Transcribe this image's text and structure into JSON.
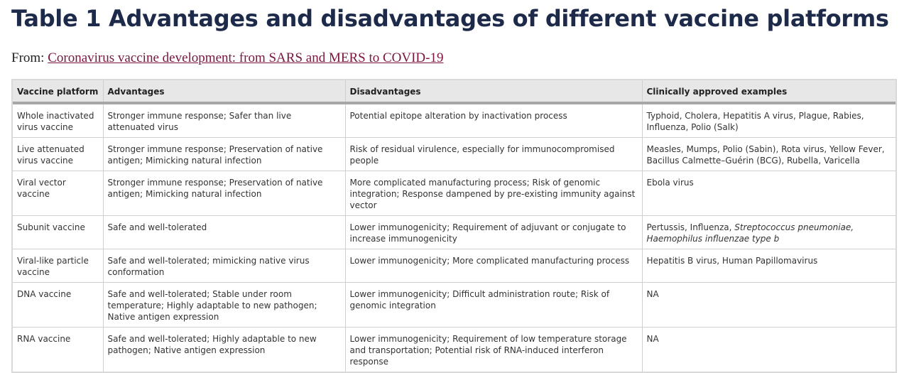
{
  "page": {
    "title": "Table 1 Advantages and disadvantages of different vaccine platforms",
    "from_label": "From:",
    "source_link": "Coronavirus vaccine development: from SARS and MERS to COVID-19"
  },
  "table": {
    "headers": [
      "Vaccine platform",
      "Advantages",
      "Disadvantages",
      "Clinically approved examples"
    ],
    "rows": [
      {
        "platform": "Whole inactivated virus vaccine",
        "advantages": "Stronger immune response; Safer than live attenuated virus",
        "disadvantages": "Potential epitope alteration by inactivation process",
        "examples": "Typhoid, Cholera, Hepatitis A virus, Plague, Rabies, Influenza, Polio (Salk)"
      },
      {
        "platform": "Live attenuated virus vaccine",
        "advantages": "Stronger immune response; Preservation of native antigen; Mimicking natural infection",
        "disadvantages": "Risk of residual virulence, especially for immunocompromised people",
        "examples": "Measles, Mumps, Polio (Sabin), Rota virus, Yellow Fever, Bacillus Calmette–Guérin (BCG), Rubella, Varicella"
      },
      {
        "platform": "Viral vector vaccine",
        "advantages": "Stronger immune response; Preservation of native antigen; Mimicking natural infection",
        "disadvantages": "More complicated manufacturing process; Risk of genomic integration; Response dampened by pre-existing immunity against vector",
        "examples": "Ebola virus"
      },
      {
        "platform": "Subunit vaccine",
        "advantages": "Safe and well-tolerated",
        "disadvantages": "Lower immunogenicity; Requirement of adjuvant or conjugate to increase immunogenicity",
        "examples_plain": "Pertussis, Influenza, ",
        "examples_italic": "Streptococcus pneumoniae, Haemophilus influenzae type b"
      },
      {
        "platform": "Viral-like particle vaccine",
        "advantages": "Safe and well-tolerated; mimicking native virus conformation",
        "disadvantages": "Lower immunogenicity; More complicated manufacturing process",
        "examples": "Hepatitis B virus, Human Papillomavirus"
      },
      {
        "platform": "DNA vaccine",
        "advantages": "Safe and well-tolerated; Stable under room temperature; Highly adaptable to new pathogen; Native antigen expression",
        "disadvantages": "Lower immunogenicity; Difficult administration route; Risk of genomic integration",
        "examples": "NA"
      },
      {
        "platform": "RNA vaccine",
        "advantages": "Safe and well-tolerated; Highly adaptable to new pathogen; Native antigen expression",
        "disadvantages": "Lower immunogenicity; Requirement of low temperature storage and transportation; Potential risk of RNA-induced interferon response",
        "examples": "NA"
      }
    ]
  }
}
